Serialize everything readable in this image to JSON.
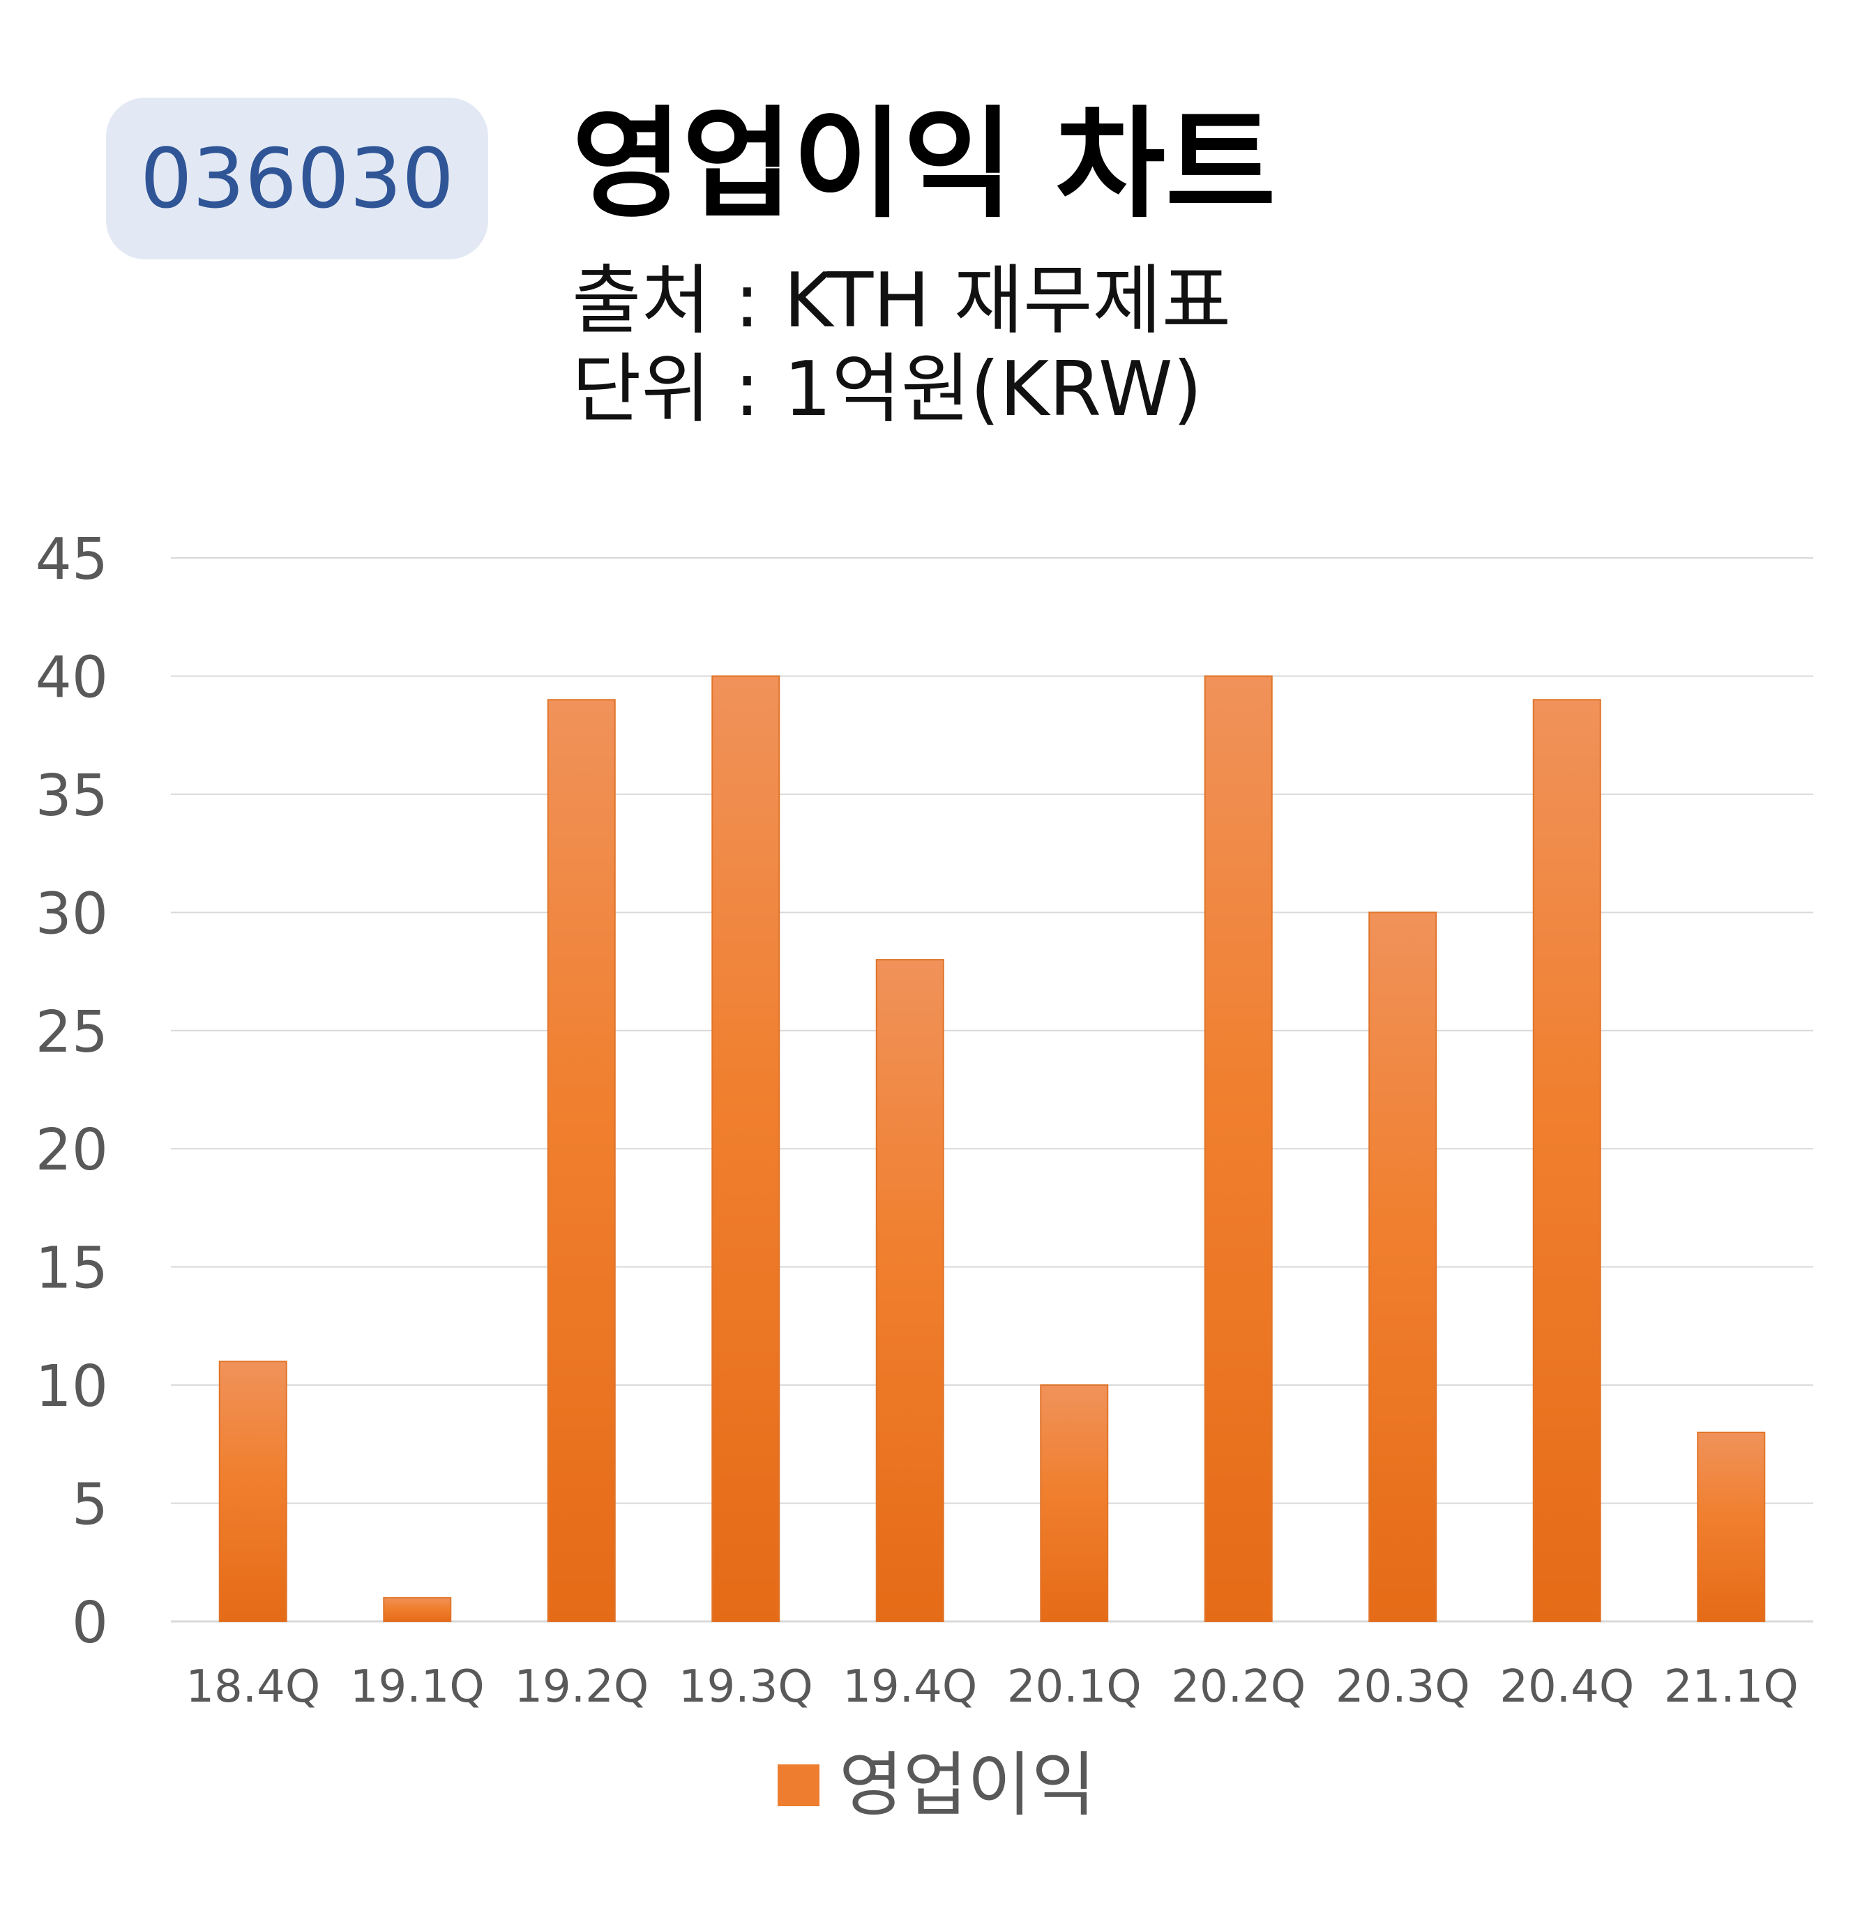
{
  "header": {
    "code": "036030",
    "title": "영업이익 차트",
    "source": "출처 : KTH 재무제표",
    "unit": "단위 : 1억원(KRW)"
  },
  "colors": {
    "bar": "#ee7d2f",
    "bar_light": "#f09a5e",
    "badge_bg": "#e3e9f4",
    "badge_text": "#2f5597",
    "grid": "#d9d9d9",
    "axis_text": "#595959"
  },
  "chart_data": {
    "type": "bar",
    "title": "",
    "xlabel": "",
    "ylabel": "",
    "categories": [
      "18.4Q",
      "19.1Q",
      "19.2Q",
      "19.3Q",
      "19.4Q",
      "20.1Q",
      "20.2Q",
      "20.3Q",
      "20.4Q",
      "21.1Q"
    ],
    "series": [
      {
        "name": "영업이익",
        "values": [
          11,
          1,
          39,
          40,
          28,
          10,
          40,
          30,
          39,
          8
        ]
      }
    ],
    "ylim": [
      0,
      45
    ],
    "yticks": [
      0,
      5,
      10,
      15,
      20,
      25,
      30,
      35,
      40,
      45
    ],
    "grid": true,
    "legend": "bottom"
  }
}
